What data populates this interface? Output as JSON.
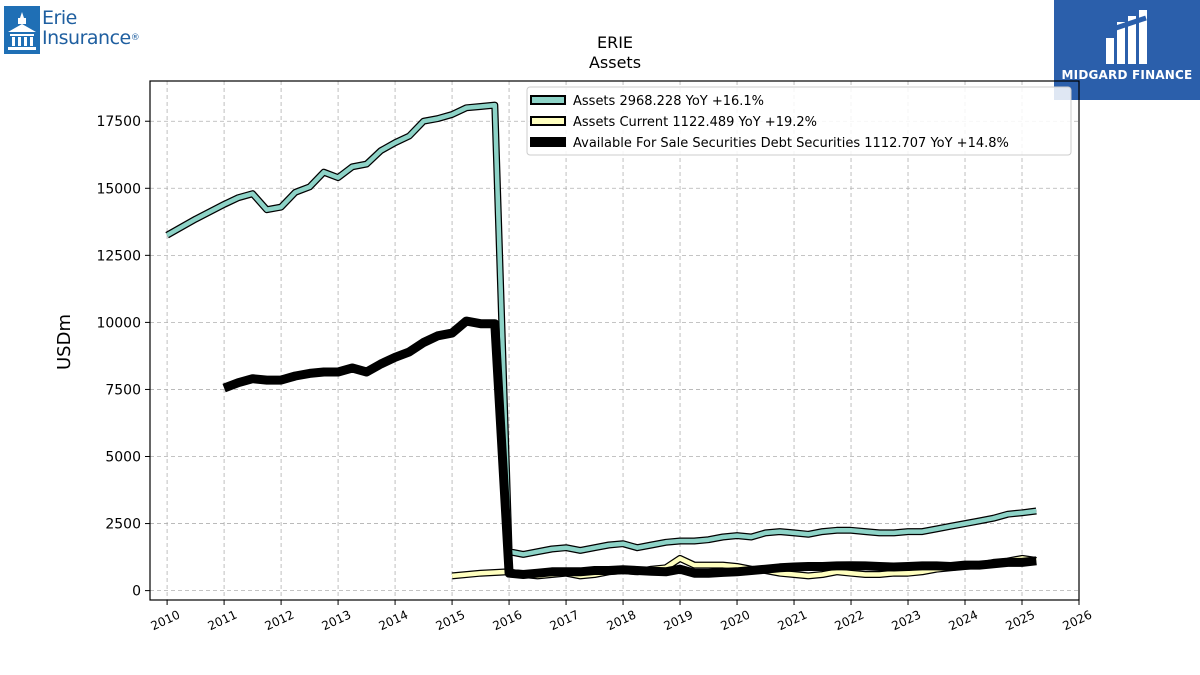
{
  "branding": {
    "left_logo_line1": "Erie",
    "left_logo_line2": "Insurance",
    "left_logo_mark": "®",
    "right_logo_text": "MIDGARD FINANCE",
    "right_logo_bg": "#2b5fab"
  },
  "chart_data": {
    "type": "line",
    "title": "ERIE",
    "subtitle": "Assets",
    "ylabel": "USDm",
    "xlabel": "",
    "xlim": [
      2009.7,
      2026
    ],
    "ylim": [
      -350,
      19000
    ],
    "xticks": [
      2010,
      2011,
      2012,
      2013,
      2014,
      2015,
      2016,
      2017,
      2018,
      2019,
      2020,
      2021,
      2022,
      2023,
      2024,
      2025,
      2026
    ],
    "yticks": [
      0,
      2500,
      5000,
      7500,
      10000,
      12500,
      15000,
      17500
    ],
    "grid": true,
    "legend_position": "top-right",
    "series": [
      {
        "name": "Assets  2968.228 YoY +16.1%",
        "color": "#8dd3c7",
        "points": [
          [
            2010.0,
            13250
          ],
          [
            2010.5,
            13850
          ],
          [
            2011.0,
            14400
          ],
          [
            2011.25,
            14650
          ],
          [
            2011.5,
            14800
          ],
          [
            2011.75,
            14200
          ],
          [
            2012.0,
            14300
          ],
          [
            2012.25,
            14850
          ],
          [
            2012.5,
            15050
          ],
          [
            2012.75,
            15600
          ],
          [
            2013.0,
            15400
          ],
          [
            2013.25,
            15800
          ],
          [
            2013.5,
            15900
          ],
          [
            2013.75,
            16400
          ],
          [
            2014.0,
            16700
          ],
          [
            2014.25,
            16950
          ],
          [
            2014.5,
            17500
          ],
          [
            2014.75,
            17600
          ],
          [
            2015.0,
            17750
          ],
          [
            2015.25,
            18000
          ],
          [
            2015.5,
            18050
          ],
          [
            2015.75,
            18100
          ],
          [
            2016.0,
            1450
          ],
          [
            2016.25,
            1350
          ],
          [
            2016.5,
            1450
          ],
          [
            2016.75,
            1550
          ],
          [
            2017.0,
            1600
          ],
          [
            2017.25,
            1500
          ],
          [
            2017.5,
            1600
          ],
          [
            2017.75,
            1700
          ],
          [
            2018.0,
            1750
          ],
          [
            2018.25,
            1600
          ],
          [
            2018.5,
            1700
          ],
          [
            2018.75,
            1800
          ],
          [
            2019.0,
            1850
          ],
          [
            2019.25,
            1850
          ],
          [
            2019.5,
            1900
          ],
          [
            2019.75,
            2000
          ],
          [
            2020.0,
            2050
          ],
          [
            2020.25,
            2000
          ],
          [
            2020.5,
            2150
          ],
          [
            2020.75,
            2200
          ],
          [
            2021.0,
            2150
          ],
          [
            2021.25,
            2100
          ],
          [
            2021.5,
            2200
          ],
          [
            2021.75,
            2250
          ],
          [
            2022.0,
            2250
          ],
          [
            2022.25,
            2200
          ],
          [
            2022.5,
            2150
          ],
          [
            2022.75,
            2150
          ],
          [
            2023.0,
            2200
          ],
          [
            2023.25,
            2200
          ],
          [
            2023.5,
            2300
          ],
          [
            2023.75,
            2400
          ],
          [
            2024.0,
            2500
          ],
          [
            2024.25,
            2600
          ],
          [
            2024.5,
            2700
          ],
          [
            2024.75,
            2850
          ],
          [
            2025.0,
            2900
          ],
          [
            2025.25,
            2968
          ]
        ]
      },
      {
        "name": "Assets Current  1122.489 YoY +19.2%",
        "color": "#ffffbf",
        "points": [
          [
            2015.0,
            550
          ],
          [
            2015.5,
            650
          ],
          [
            2016.0,
            700
          ],
          [
            2016.25,
            600
          ],
          [
            2016.5,
            550
          ],
          [
            2016.75,
            600
          ],
          [
            2017.0,
            650
          ],
          [
            2017.25,
            550
          ],
          [
            2017.5,
            600
          ],
          [
            2017.75,
            700
          ],
          [
            2018.0,
            750
          ],
          [
            2018.25,
            700
          ],
          [
            2018.5,
            800
          ],
          [
            2018.75,
            850
          ],
          [
            2019.0,
            1200
          ],
          [
            2019.25,
            950
          ],
          [
            2019.5,
            950
          ],
          [
            2019.75,
            950
          ],
          [
            2020.0,
            900
          ],
          [
            2020.25,
            800
          ],
          [
            2020.5,
            750
          ],
          [
            2020.75,
            650
          ],
          [
            2021.0,
            600
          ],
          [
            2021.25,
            550
          ],
          [
            2021.5,
            600
          ],
          [
            2021.75,
            700
          ],
          [
            2022.0,
            650
          ],
          [
            2022.25,
            600
          ],
          [
            2022.5,
            600
          ],
          [
            2022.75,
            650
          ],
          [
            2023.0,
            650
          ],
          [
            2023.25,
            700
          ],
          [
            2023.5,
            800
          ],
          [
            2023.75,
            850
          ],
          [
            2024.0,
            900
          ],
          [
            2024.25,
            950
          ],
          [
            2024.5,
            1050
          ],
          [
            2024.75,
            1100
          ],
          [
            2025.0,
            1200
          ],
          [
            2025.25,
            1122
          ]
        ]
      },
      {
        "name": "Available For Sale Securities Debt Securities  1112.707 YoY +14.8%",
        "color": "#000000",
        "points": [
          [
            2011.0,
            7550
          ],
          [
            2011.25,
            7750
          ],
          [
            2011.5,
            7900
          ],
          [
            2011.75,
            7850
          ],
          [
            2012.0,
            7850
          ],
          [
            2012.25,
            8000
          ],
          [
            2012.5,
            8100
          ],
          [
            2012.75,
            8150
          ],
          [
            2013.0,
            8150
          ],
          [
            2013.25,
            8300
          ],
          [
            2013.5,
            8150
          ],
          [
            2013.75,
            8450
          ],
          [
            2014.0,
            8700
          ],
          [
            2014.25,
            8900
          ],
          [
            2014.5,
            9250
          ],
          [
            2014.75,
            9500
          ],
          [
            2015.0,
            9600
          ],
          [
            2015.25,
            10050
          ],
          [
            2015.5,
            9950
          ],
          [
            2015.75,
            9950
          ],
          [
            2016.0,
            650
          ],
          [
            2016.25,
            600
          ],
          [
            2016.5,
            650
          ],
          [
            2016.75,
            700
          ],
          [
            2017.0,
            700
          ],
          [
            2017.25,
            700
          ],
          [
            2017.5,
            750
          ],
          [
            2017.75,
            750
          ],
          [
            2018.0,
            780
          ],
          [
            2018.25,
            750
          ],
          [
            2018.5,
            720
          ],
          [
            2018.75,
            700
          ],
          [
            2019.0,
            800
          ],
          [
            2019.25,
            650
          ],
          [
            2019.5,
            650
          ],
          [
            2019.75,
            680
          ],
          [
            2020.0,
            700
          ],
          [
            2020.25,
            750
          ],
          [
            2020.5,
            800
          ],
          [
            2020.75,
            850
          ],
          [
            2021.0,
            880
          ],
          [
            2021.25,
            900
          ],
          [
            2021.5,
            900
          ],
          [
            2021.75,
            920
          ],
          [
            2022.0,
            930
          ],
          [
            2022.25,
            920
          ],
          [
            2022.5,
            900
          ],
          [
            2022.75,
            880
          ],
          [
            2023.0,
            900
          ],
          [
            2023.25,
            920
          ],
          [
            2023.5,
            920
          ],
          [
            2023.75,
            900
          ],
          [
            2024.0,
            950
          ],
          [
            2024.25,
            950
          ],
          [
            2024.5,
            1000
          ],
          [
            2024.75,
            1050
          ],
          [
            2025.0,
            1050
          ],
          [
            2025.25,
            1112
          ]
        ]
      }
    ]
  }
}
